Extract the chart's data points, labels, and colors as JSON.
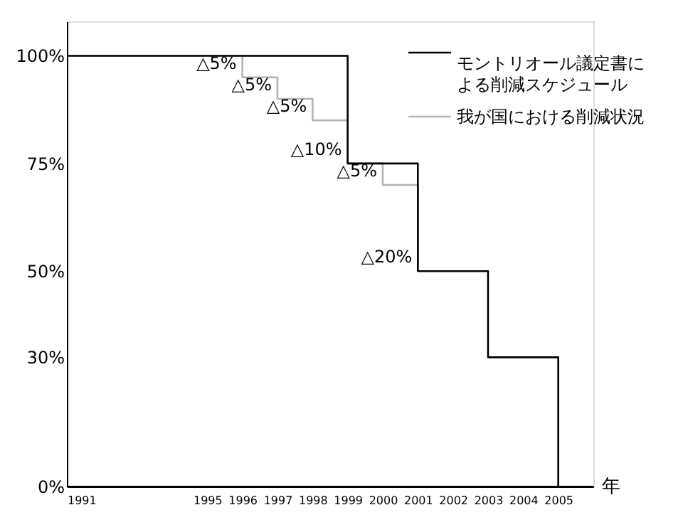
{
  "chart_data": {
    "type": "line",
    "xlabel": "年",
    "xlim": [
      1991,
      2006
    ],
    "xticks": [
      1991,
      1995,
      1996,
      1997,
      1998,
      1999,
      2000,
      2001,
      2002,
      2003,
      2004,
      2005
    ],
    "ylim": [
      0,
      108
    ],
    "yticks": [
      {
        "value": 0,
        "label": "0%"
      },
      {
        "value": 30,
        "label": "30%"
      },
      {
        "value": 50,
        "label": "50%"
      },
      {
        "value": 75,
        "label": "75%"
      },
      {
        "value": 100,
        "label": "100%"
      }
    ],
    "series": [
      {
        "name": "我が国における削減状況",
        "color": "#b4b4b4",
        "x": [
          1996,
          1996,
          1997,
          1997,
          1998,
          1998,
          1999,
          1999,
          2000,
          2000,
          2001,
          2001
        ],
        "values": [
          100,
          95,
          95,
          90,
          90,
          85,
          85,
          75,
          75,
          70,
          70,
          50
        ]
      },
      {
        "name": "モントリオール議定書による削減スケジュール",
        "color": "#000000",
        "type": "step",
        "x": [
          1991,
          1999,
          2001,
          2003,
          2005
        ],
        "values": [
          100,
          75,
          50,
          30,
          0
        ]
      }
    ],
    "annotations": [
      {
        "text": "△5%",
        "x": 1996,
        "y": 95
      },
      {
        "text": "△5%",
        "x": 1997,
        "y": 90
      },
      {
        "text": "△5%",
        "x": 1998,
        "y": 85
      },
      {
        "text": "△10%",
        "x": 1999,
        "y": 75
      },
      {
        "text": "△5%",
        "x": 2000,
        "y": 70
      },
      {
        "text": "△20%",
        "x": 2001,
        "y": 50
      }
    ],
    "legend": "top right",
    "grid": false
  }
}
